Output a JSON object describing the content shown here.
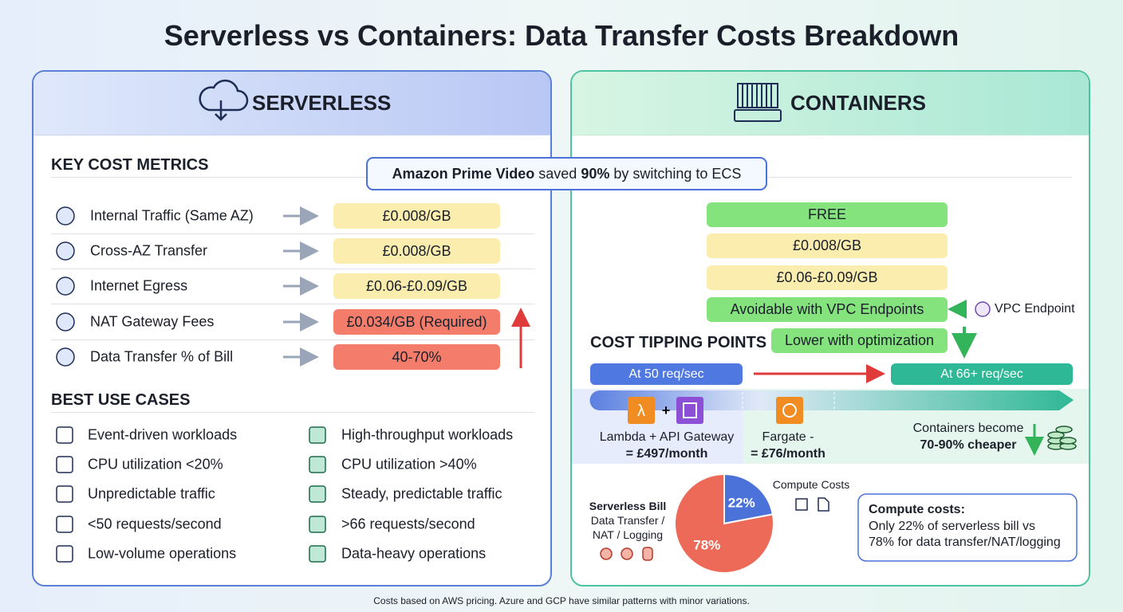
{
  "title": "Serverless vs Containers: Data Transfer Costs Breakdown",
  "footer": "Costs based on AWS pricing. Azure and GCP have similar patterns with minor variations.",
  "callout": {
    "company": "Amazon Prime Video",
    "verb": "saved",
    "amount": "90%",
    "rest": "by switching to ECS"
  },
  "serverless": {
    "title": "SERVERLESS",
    "metrics_heading": "KEY COST METRICS",
    "metrics": [
      {
        "label": "Internal Traffic (Same AZ)",
        "value": "£0.008/GB"
      },
      {
        "label": "Cross-AZ Transfer",
        "value": "£0.008/GB"
      },
      {
        "label": "Internet Egress",
        "value": "£0.06-£0.09/GB"
      },
      {
        "label": "NAT Gateway Fees",
        "value": "£0.034/GB (Required)"
      },
      {
        "label": "Data Transfer % of Bill",
        "value": "40-70%"
      }
    ],
    "use_cases_heading": "BEST USE CASES",
    "use_cases_serverless": [
      "Event-driven workloads",
      "CPU utilization <20%",
      "Unpredictable traffic",
      "<50 requests/second",
      "Low-volume operations"
    ],
    "use_cases_containers": [
      "High-throughput workloads",
      "CPU utilization >40%",
      "Steady, predictable traffic",
      ">66 requests/second",
      "Data-heavy operations"
    ]
  },
  "containers": {
    "title": "CONTAINERS",
    "metrics": [
      "FREE",
      "£0.008/GB",
      "£0.06-£0.09/GB",
      "Avoidable with VPC Endpoints",
      "Lower with optimization"
    ],
    "vpc_note": "VPC Endpoint",
    "tipping": {
      "heading": "COST TIPPING POINTS",
      "low": "At 50 req/sec",
      "high": "At 66+ req/sec",
      "lambda_name": "Lambda + API Gateway",
      "lambda_cost": "= £497/month",
      "fargate_name": "Fargate -",
      "fargate_cost": "= £76/month",
      "result_line": "Containers become",
      "result_amount": "70-90% cheaper"
    },
    "bill": {
      "title": "Serverless Bill",
      "data_label_lines": [
        "Data Transfer /",
        "NAT / Logging"
      ],
      "compute_label": "Compute Costs",
      "values": [
        22,
        78
      ],
      "value_labels": [
        "22%",
        "78%"
      ],
      "colors": [
        "#4a72d9",
        "#ee6a58"
      ],
      "note_title": "Compute costs:",
      "note_lines": [
        "Only 22% of serverless bill vs",
        "78% for data transfer/NAT/logging"
      ]
    }
  }
}
